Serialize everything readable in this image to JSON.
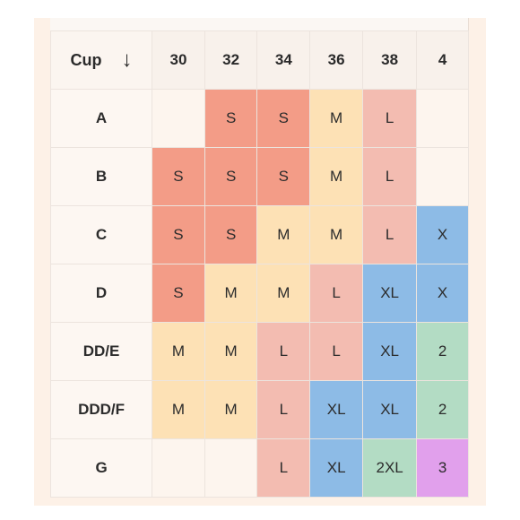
{
  "table": {
    "cup_header": "Cup",
    "sort_arrow": "↓",
    "band_sizes": [
      "30",
      "32",
      "34",
      "36",
      "38",
      "4"
    ],
    "rows": [
      {
        "cup": "A",
        "cells": [
          "",
          "S",
          "S",
          "M",
          "L",
          ""
        ]
      },
      {
        "cup": "B",
        "cells": [
          "S",
          "S",
          "S",
          "M",
          "L",
          ""
        ]
      },
      {
        "cup": "C",
        "cells": [
          "S",
          "S",
          "M",
          "M",
          "L",
          "X"
        ]
      },
      {
        "cup": "D",
        "cells": [
          "S",
          "M",
          "M",
          "L",
          "XL",
          "X"
        ]
      },
      {
        "cup": "DD/E",
        "cells": [
          "M",
          "M",
          "L",
          "L",
          "XL",
          "2"
        ]
      },
      {
        "cup": "DDD/F",
        "cells": [
          "M",
          "M",
          "L",
          "XL",
          "XL",
          "2"
        ]
      },
      {
        "cup": "G",
        "cells": [
          "",
          "",
          "L",
          "XL",
          "2XL",
          "3"
        ]
      }
    ]
  },
  "size_colors": {
    "S": "#f39c87",
    "M": "#fde1b5",
    "L": "#f3bcb1",
    "XL": "#8dbbe6",
    "X": "#8dbbe6",
    "2XL": "#b3dcc4",
    "2": "#b3dcc4",
    "3": "#e1a0ec"
  }
}
